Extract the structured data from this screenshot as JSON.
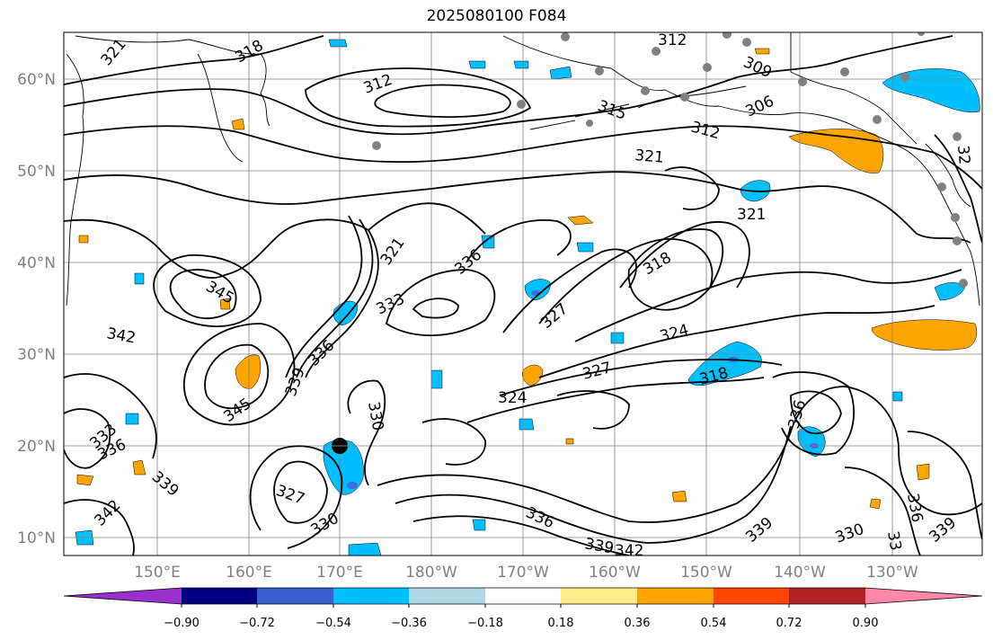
{
  "title": "2025080100 F084",
  "map": {
    "lat_ticks": [
      "60°N",
      "50°N",
      "40°N",
      "30°N",
      "20°N",
      "10°N"
    ],
    "lon_ticks": [
      "150°E",
      "160°E",
      "170°E",
      "180°W",
      "170°W",
      "160°W",
      "150°W",
      "140°W",
      "130°W"
    ],
    "contour_labels": [
      {
        "text": "318"
      },
      {
        "text": "321"
      },
      {
        "text": "312"
      },
      {
        "text": "312"
      },
      {
        "text": "309"
      },
      {
        "text": "306"
      },
      {
        "text": "315"
      },
      {
        "text": "312"
      },
      {
        "text": "321"
      },
      {
        "text": "32"
      },
      {
        "text": "321"
      },
      {
        "text": "321"
      },
      {
        "text": "336"
      },
      {
        "text": "318"
      },
      {
        "text": "345"
      },
      {
        "text": "333"
      },
      {
        "text": "327"
      },
      {
        "text": "342"
      },
      {
        "text": "324"
      },
      {
        "text": "336"
      },
      {
        "text": "339"
      },
      {
        "text": "327"
      },
      {
        "text": "318"
      },
      {
        "text": "345"
      },
      {
        "text": "324"
      },
      {
        "text": "336"
      },
      {
        "text": "330"
      },
      {
        "text": "333"
      },
      {
        "text": "336"
      },
      {
        "text": "339"
      },
      {
        "text": "327"
      },
      {
        "text": "342"
      },
      {
        "text": "330"
      },
      {
        "text": "336"
      },
      {
        "text": "339"
      },
      {
        "text": "342"
      },
      {
        "text": "339"
      },
      {
        "text": "330"
      },
      {
        "text": "336"
      },
      {
        "text": "339"
      },
      {
        "text": "33"
      }
    ],
    "colors": {
      "contour": "#000000",
      "grid": "#808080",
      "coast": "#000000",
      "station": "#808080",
      "positive": "#ffa500",
      "negative": "#00bfff",
      "negative_light": "#add8ff"
    }
  },
  "colorbar": {
    "ticks": [
      "−0.90",
      "−0.72",
      "−0.54",
      "−0.36",
      "−0.18",
      "0.18",
      "0.36",
      "0.54",
      "0.72",
      "0.90"
    ],
    "colors": [
      "#9932cc",
      "#000080",
      "#3a5fcd",
      "#00bfff",
      "#add8e6",
      "#ffffff",
      "#ffee88",
      "#ffa500",
      "#ff4500",
      "#b22222",
      "#ff88aa"
    ]
  }
}
